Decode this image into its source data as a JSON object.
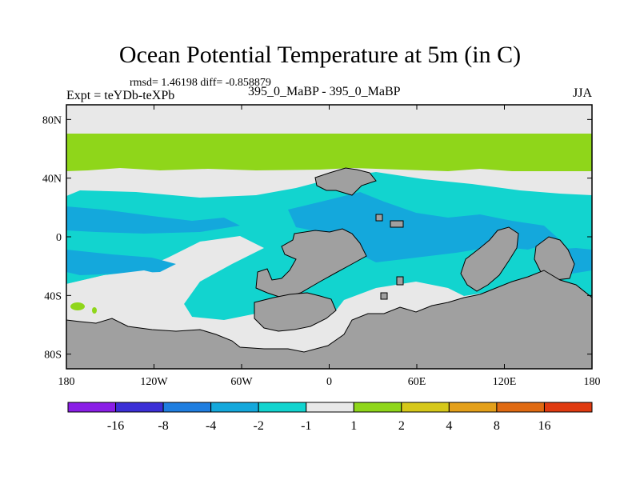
{
  "chart_data": {
    "type": "heatmap",
    "title": "Ocean Potential Temperature at 5m (in C)",
    "stats": "rmsd= 1.46198 diff= -0.858879",
    "subtitle": "395_0_MaBP - 395_0_MaBP",
    "left_label": "Expt = teYDb-teXPb",
    "right_label": "JJA",
    "x_ticks": [
      "180",
      "120W",
      "60W",
      "0",
      "60E",
      "120E",
      "180"
    ],
    "y_ticks": [
      "80N",
      "40N",
      "0",
      "40S",
      "80S"
    ],
    "x_range": [
      -180,
      180
    ],
    "y_range": [
      -90,
      90
    ],
    "colorbar": {
      "labels": [
        "-16",
        "-8",
        "-4",
        "-2",
        "-1",
        "1",
        "2",
        "4",
        "8",
        "16"
      ],
      "colors": [
        "#8a1ee6",
        "#3b2fd6",
        "#1f7ee0",
        "#14a8dc",
        "#12d4cf",
        "#e8e8e8",
        "#8fd61a",
        "#d6c81a",
        "#e4a01a",
        "#e06a12",
        "#e03a10"
      ]
    },
    "land_color": "#a0a0a0",
    "note": "Map field rendered schematically: grey = land; light grey band ±1C dominant at high latitudes and tropics; green (1 to 2C) band ~45N-70N; cyan (-2 to -1C) and light blue (-4 to -2C) over mid/southern ocean."
  }
}
